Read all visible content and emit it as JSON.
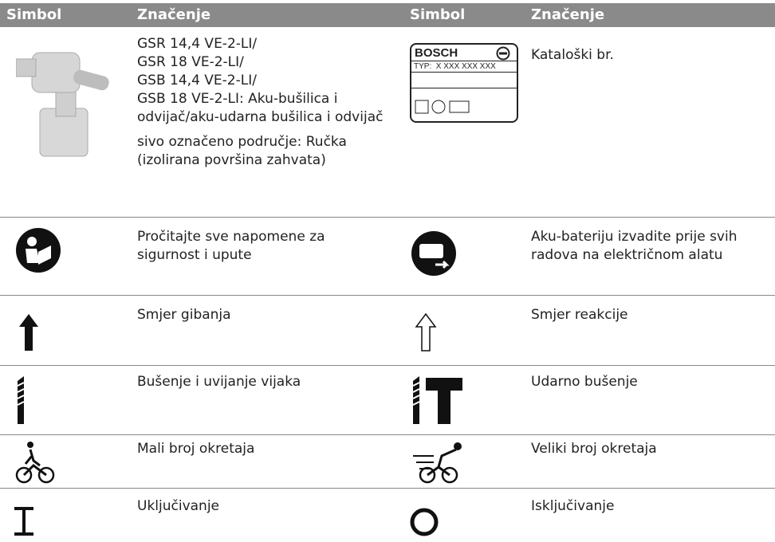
{
  "table": {
    "header": [
      "Simbol",
      "Značenje",
      "Simbol",
      "Značenje"
    ],
    "rows": [
      {
        "left": {
          "lines": [
            "GSR 14,4 VE-2-LI/",
            "GSR 18 VE-2-LI/",
            "GSB 14,4 VE-2-LI/",
            "GSB 18 VE-2-LI: Aku-bušilica i odvijač/aku-udarna bušilica i odvijač"
          ],
          "note": "sivo označeno područje: Ručka (izolirana površina zahvata)"
        },
        "right": {
          "label_brand": "BOSCH",
          "label_type": "TYP:  X XXX XXX XXX",
          "meaning": "Kataloški br."
        }
      },
      {
        "left": "Pročitajte sve napomene za sigurnost i upute",
        "right": "Aku-bateriju izvadite prije svih radova na električnom alatu"
      },
      {
        "left": "Smjer gibanja",
        "right": "Smjer reakcije"
      },
      {
        "left": "Bušenje i uvijanje vijaka",
        "right": "Udarno bušenje"
      },
      {
        "left": "Mali broj okretaja",
        "right": "Veliki broj okretaja"
      },
      {
        "left": "Uključivanje",
        "right": "Isključivanje"
      }
    ]
  }
}
